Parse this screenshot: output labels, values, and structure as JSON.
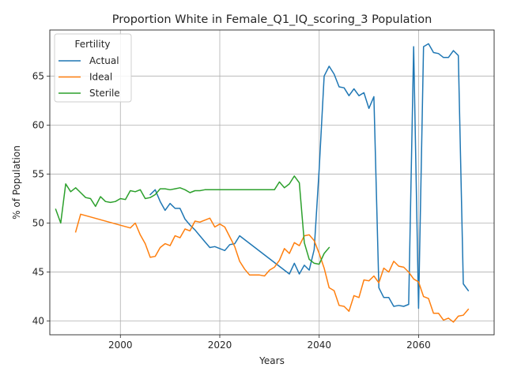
{
  "chart_data": {
    "type": "line",
    "title": "Proportion White in Female_Q1_IQ_scoring_3 Population",
    "xlabel": "Years",
    "ylabel": "% of Population",
    "xlim": [
      1985.8,
      2075.2
    ],
    "ylim": [
      38.6,
      69.7
    ],
    "xticks": [
      2000,
      2020,
      2040,
      2060
    ],
    "yticks": [
      40,
      45,
      50,
      55,
      60,
      65
    ],
    "grid": true,
    "legend": {
      "title": "Fertility",
      "placement": "upper-left"
    },
    "series": [
      {
        "name": "Actual",
        "color": "#1f77b4",
        "points": [
          [
            2006,
            52.9
          ],
          [
            2007,
            53.4
          ],
          [
            2008,
            52.2
          ],
          [
            2009,
            51.3
          ],
          [
            2010,
            52.0
          ],
          [
            2011,
            51.5
          ],
          [
            2012,
            51.5
          ],
          [
            2013,
            50.4
          ],
          [
            2014,
            49.8
          ],
          [
            2015,
            49.3
          ],
          [
            2016,
            48.7
          ],
          [
            2017,
            48.1
          ],
          [
            2018,
            47.5
          ],
          [
            2019,
            47.6
          ],
          [
            2020,
            47.4
          ],
          [
            2021,
            47.2
          ],
          [
            2022,
            47.8
          ],
          [
            2023,
            47.9
          ],
          [
            2024,
            48.7
          ],
          [
            2034,
            44.8
          ],
          [
            2035,
            45.9
          ],
          [
            2036,
            44.8
          ],
          [
            2037,
            45.7
          ],
          [
            2038,
            45.2
          ],
          [
            2039,
            47.3
          ],
          [
            2040,
            55.5
          ],
          [
            2041,
            65.0
          ],
          [
            2042,
            66.0
          ],
          [
            2043,
            65.2
          ],
          [
            2044,
            63.9
          ],
          [
            2045,
            63.8
          ],
          [
            2046,
            63.0
          ],
          [
            2047,
            63.7
          ],
          [
            2048,
            63.0
          ],
          [
            2049,
            63.3
          ],
          [
            2050,
            61.7
          ],
          [
            2051,
            62.9
          ],
          [
            2052,
            43.4
          ],
          [
            2053,
            42.4
          ],
          [
            2054,
            42.4
          ],
          [
            2055,
            41.5
          ],
          [
            2056,
            41.6
          ],
          [
            2057,
            41.5
          ],
          [
            2058,
            41.7
          ],
          [
            2059,
            68.0
          ],
          [
            2060,
            41.3
          ],
          [
            2061,
            68.0
          ],
          [
            2062,
            68.3
          ],
          [
            2063,
            67.4
          ],
          [
            2064,
            67.3
          ],
          [
            2065,
            66.9
          ],
          [
            2066,
            66.9
          ],
          [
            2067,
            67.6
          ],
          [
            2068,
            67.1
          ],
          [
            2069,
            43.8
          ],
          [
            2070,
            43.1
          ]
        ]
      },
      {
        "name": "Ideal",
        "color": "#ff7f0e",
        "points": [
          [
            1991,
            49.1
          ],
          [
            1992,
            50.9
          ],
          [
            2002,
            49.5
          ],
          [
            2003,
            50.0
          ],
          [
            2004,
            48.8
          ],
          [
            2005,
            47.9
          ],
          [
            2006,
            46.5
          ],
          [
            2007,
            46.6
          ],
          [
            2008,
            47.5
          ],
          [
            2009,
            47.9
          ],
          [
            2010,
            47.7
          ],
          [
            2011,
            48.7
          ],
          [
            2012,
            48.5
          ],
          [
            2013,
            49.4
          ],
          [
            2014,
            49.2
          ],
          [
            2015,
            50.2
          ],
          [
            2016,
            50.1
          ],
          [
            2017,
            50.3
          ],
          [
            2018,
            50.5
          ],
          [
            2019,
            49.6
          ],
          [
            2020,
            49.9
          ],
          [
            2021,
            49.6
          ],
          [
            2022,
            48.6
          ],
          [
            2023,
            47.6
          ],
          [
            2024,
            46.1
          ],
          [
            2025,
            45.3
          ],
          [
            2026,
            44.7
          ],
          [
            2027,
            44.7
          ],
          [
            2028,
            44.7
          ],
          [
            2029,
            44.6
          ],
          [
            2030,
            45.2
          ],
          [
            2031,
            45.5
          ],
          [
            2032,
            46.2
          ],
          [
            2033,
            47.4
          ],
          [
            2034,
            46.9
          ],
          [
            2035,
            48.0
          ],
          [
            2036,
            47.7
          ],
          [
            2037,
            48.7
          ],
          [
            2038,
            48.8
          ],
          [
            2039,
            48.2
          ],
          [
            2040,
            46.9
          ],
          [
            2041,
            45.4
          ],
          [
            2042,
            43.4
          ],
          [
            2043,
            43.1
          ],
          [
            2044,
            41.6
          ],
          [
            2045,
            41.5
          ],
          [
            2046,
            41.0
          ],
          [
            2047,
            42.6
          ],
          [
            2048,
            42.4
          ],
          [
            2049,
            44.2
          ],
          [
            2050,
            44.1
          ],
          [
            2051,
            44.6
          ],
          [
            2052,
            43.9
          ],
          [
            2053,
            45.4
          ],
          [
            2054,
            45.0
          ],
          [
            2055,
            46.1
          ],
          [
            2056,
            45.6
          ],
          [
            2057,
            45.5
          ],
          [
            2058,
            45.0
          ],
          [
            2059,
            44.3
          ],
          [
            2060,
            44.0
          ],
          [
            2061,
            42.5
          ],
          [
            2062,
            42.3
          ],
          [
            2063,
            40.8
          ],
          [
            2064,
            40.8
          ],
          [
            2065,
            40.1
          ],
          [
            2066,
            40.3
          ],
          [
            2067,
            39.9
          ],
          [
            2068,
            40.5
          ],
          [
            2069,
            40.6
          ],
          [
            2070,
            41.2
          ]
        ]
      },
      {
        "name": "Sterile",
        "color": "#2ca02c",
        "points": [
          [
            1987,
            51.4
          ],
          [
            1988,
            50.0
          ],
          [
            1989,
            54.0
          ],
          [
            1990,
            53.2
          ],
          [
            1991,
            53.6
          ],
          [
            1992,
            53.1
          ],
          [
            1993,
            52.6
          ],
          [
            1994,
            52.5
          ],
          [
            1995,
            51.7
          ],
          [
            1996,
            52.7
          ],
          [
            1997,
            52.2
          ],
          [
            1998,
            52.1
          ],
          [
            1999,
            52.2
          ],
          [
            2000,
            52.5
          ],
          [
            2001,
            52.4
          ],
          [
            2002,
            53.3
          ],
          [
            2003,
            53.2
          ],
          [
            2004,
            53.4
          ],
          [
            2005,
            52.5
          ],
          [
            2006,
            52.6
          ],
          [
            2007,
            52.9
          ],
          [
            2008,
            53.5
          ],
          [
            2009,
            53.5
          ],
          [
            2010,
            53.4
          ],
          [
            2011,
            53.5
          ],
          [
            2012,
            53.6
          ],
          [
            2013,
            53.4
          ],
          [
            2014,
            53.1
          ],
          [
            2015,
            53.3
          ],
          [
            2016,
            53.3
          ],
          [
            2017,
            53.4
          ],
          [
            2031,
            53.4
          ],
          [
            2032,
            54.2
          ],
          [
            2033,
            53.6
          ],
          [
            2034,
            54.0
          ],
          [
            2035,
            54.8
          ],
          [
            2036,
            54.1
          ],
          [
            2037,
            48.0
          ],
          [
            2038,
            46.3
          ],
          [
            2039,
            45.9
          ],
          [
            2040,
            45.8
          ],
          [
            2041,
            46.9
          ],
          [
            2042,
            47.5
          ]
        ]
      }
    ]
  }
}
